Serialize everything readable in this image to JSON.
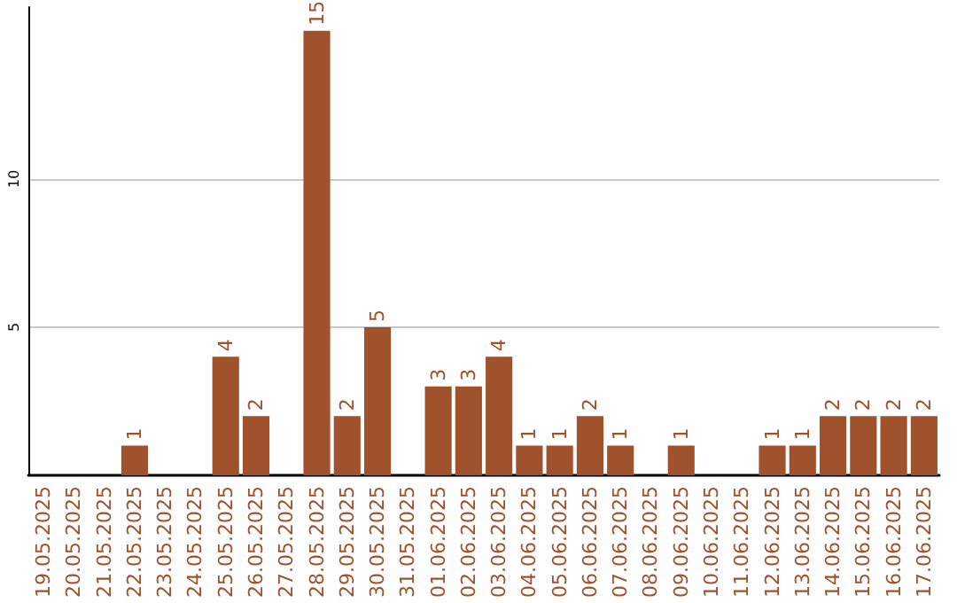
{
  "chart_data": {
    "type": "bar",
    "categories": [
      "19.05.2025",
      "20.05.2025",
      "21.05.2025",
      "22.05.2025",
      "23.05.2025",
      "24.05.2025",
      "25.05.2025",
      "26.05.2025",
      "27.05.2025",
      "28.05.2025",
      "29.05.2025",
      "30.05.2025",
      "31.05.2025",
      "01.06.2025",
      "02.06.2025",
      "03.06.2025",
      "04.06.2025",
      "05.06.2025",
      "06.06.2025",
      "07.06.2025",
      "08.06.2025",
      "09.06.2025",
      "10.06.2025",
      "11.06.2025",
      "12.06.2025",
      "13.06.2025",
      "14.06.2025",
      "15.06.2025",
      "16.06.2025",
      "17.06.2025"
    ],
    "values": [
      null,
      null,
      null,
      1,
      null,
      null,
      4,
      2,
      null,
      15,
      2,
      5,
      null,
      3,
      3,
      4,
      1,
      1,
      2,
      1,
      null,
      1,
      null,
      null,
      1,
      1,
      2,
      2,
      2,
      2
    ],
    "color": "#a0522d",
    "ylim": [
      0,
      15.8
    ],
    "yticks": [
      5,
      10
    ],
    "grid": "y",
    "data_labels": true
  }
}
